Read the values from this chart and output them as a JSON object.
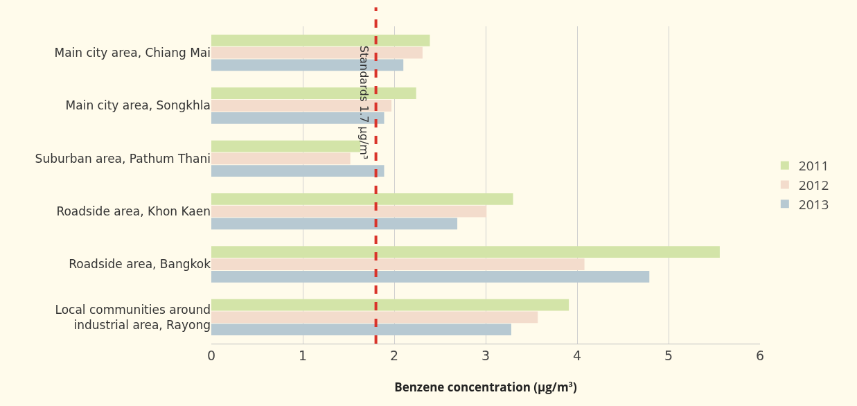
{
  "chart_data": {
    "type": "bar",
    "orientation": "horizontal",
    "xlabel": "Benzene concentration (μg/m³)",
    "categories": [
      "Main city area, Chiang Mai",
      "Main city area, Songkhla",
      "Suburban area, Pathum Thani",
      "Roadside area, Khon Kaen",
      "Roadside area, Bangkok",
      "Local communities around\nindustrial area, Rayong"
    ],
    "series": [
      {
        "name": "2011",
        "color": "#d3e4a8",
        "values": [
          2.39,
          2.24,
          1.63,
          3.3,
          5.56,
          3.91
        ]
      },
      {
        "name": "2012",
        "color": "#f3dccc",
        "values": [
          2.31,
          1.97,
          1.52,
          3.01,
          4.08,
          3.57
        ]
      },
      {
        "name": "2013",
        "color": "#b7c9d2",
        "values": [
          2.1,
          1.89,
          1.89,
          2.69,
          4.79,
          3.28
        ]
      }
    ],
    "xlim": [
      0,
      6
    ],
    "xticks": [
      0,
      1,
      2,
      3,
      4,
      5,
      6
    ],
    "grid": "x",
    "legend": "right",
    "ref_lines": [
      {
        "axis": "x",
        "value": 1.8,
        "label": "Standards 1.7 μg/m³",
        "color": "#d9342b",
        "line_style": "dashed"
      }
    ]
  }
}
